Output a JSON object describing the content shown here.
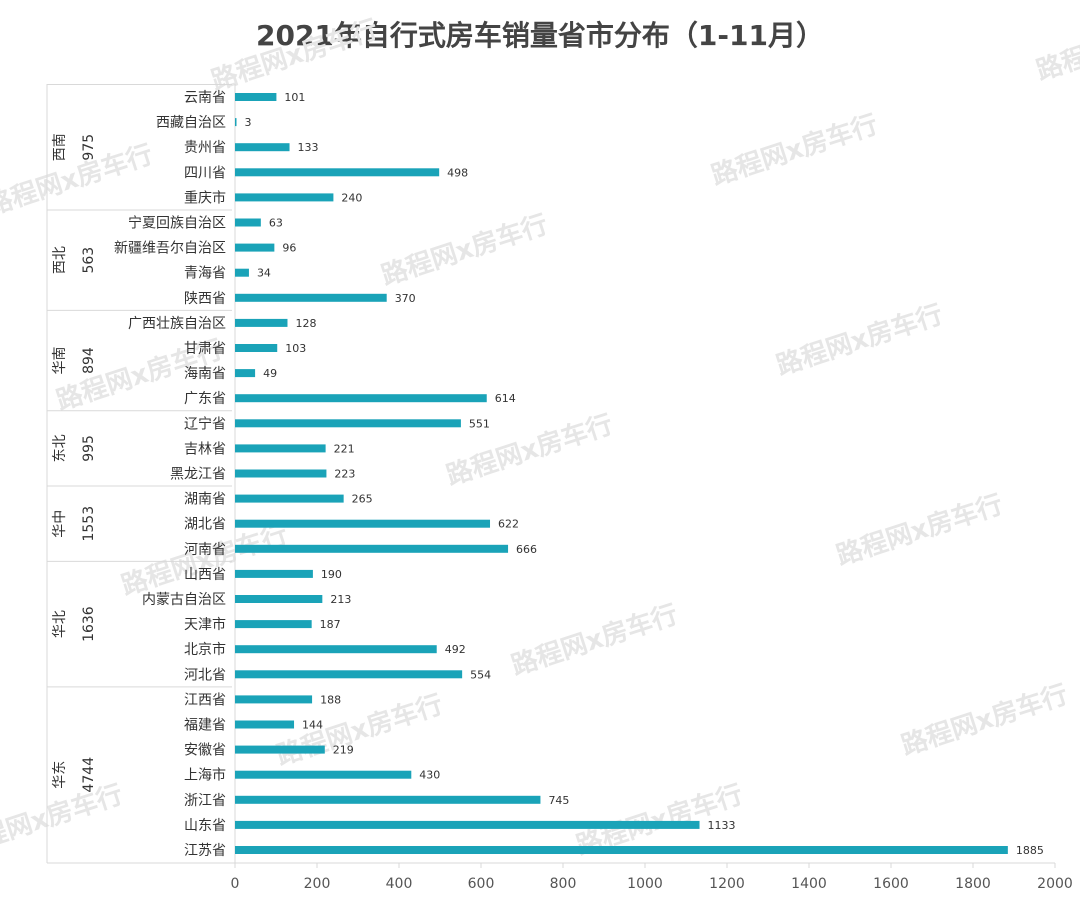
{
  "title": "2021年自行式房车销量省市分布（1-11月）",
  "watermark": "路程网x房车行",
  "colors": {
    "bar": "#1aa3b8",
    "axis": "#d9d9d9",
    "text": "#333333",
    "title": "#444444"
  },
  "chart_data": {
    "type": "bar",
    "orientation": "horizontal",
    "title": "2021年自行式房车销量省市分布（1-11月）",
    "xlim": [
      0,
      2000
    ],
    "xticks": [
      0,
      200,
      400,
      600,
      800,
      1000,
      1200,
      1400,
      1600,
      1800,
      2000
    ],
    "groups": [
      {
        "region": "西南",
        "total": "975",
        "items": [
          {
            "name": "云南省",
            "value": 101
          },
          {
            "name": "西藏自治区",
            "value": 3
          },
          {
            "name": "贵州省",
            "value": 133
          },
          {
            "name": "四川省",
            "value": 498
          },
          {
            "name": "重庆市",
            "value": 240
          }
        ]
      },
      {
        "region": "西北",
        "total": "563",
        "items": [
          {
            "name": "宁夏回族自治区",
            "value": 63
          },
          {
            "name": "新疆维吾尔自治区",
            "value": 96
          },
          {
            "name": "青海省",
            "value": 34
          },
          {
            "name": "陕西省",
            "value": 370
          }
        ]
      },
      {
        "region": "华南",
        "total": "894",
        "items": [
          {
            "name": "广西壮族自治区",
            "value": 128
          },
          {
            "name": "甘肃省",
            "value": 103
          },
          {
            "name": "海南省",
            "value": 49
          },
          {
            "name": "广东省",
            "value": 614
          }
        ]
      },
      {
        "region": "东北",
        "total": "995",
        "items": [
          {
            "name": "辽宁省",
            "value": 551
          },
          {
            "name": "吉林省",
            "value": 221
          },
          {
            "name": "黑龙江省",
            "value": 223
          }
        ]
      },
      {
        "region": "华中",
        "total": "1553",
        "items": [
          {
            "name": "湖南省",
            "value": 265
          },
          {
            "name": "湖北省",
            "value": 622
          },
          {
            "name": "河南省",
            "value": 666
          }
        ]
      },
      {
        "region": "华北",
        "total": "1636",
        "items": [
          {
            "name": "山西省",
            "value": 190
          },
          {
            "name": "内蒙古自治区",
            "value": 213
          },
          {
            "name": "天津市",
            "value": 187
          },
          {
            "name": "北京市",
            "value": 492
          },
          {
            "name": "河北省",
            "value": 554
          }
        ]
      },
      {
        "region": "华东",
        "total": "4744",
        "items": [
          {
            "name": "江西省",
            "value": 188
          },
          {
            "name": "福建省",
            "value": 144
          },
          {
            "name": "安徽省",
            "value": 219
          },
          {
            "name": "上海市",
            "value": 430
          },
          {
            "name": "浙江省",
            "value": 745
          },
          {
            "name": "山东省",
            "value": 1133
          },
          {
            "name": "江苏省",
            "value": 1885
          }
        ]
      }
    ]
  }
}
